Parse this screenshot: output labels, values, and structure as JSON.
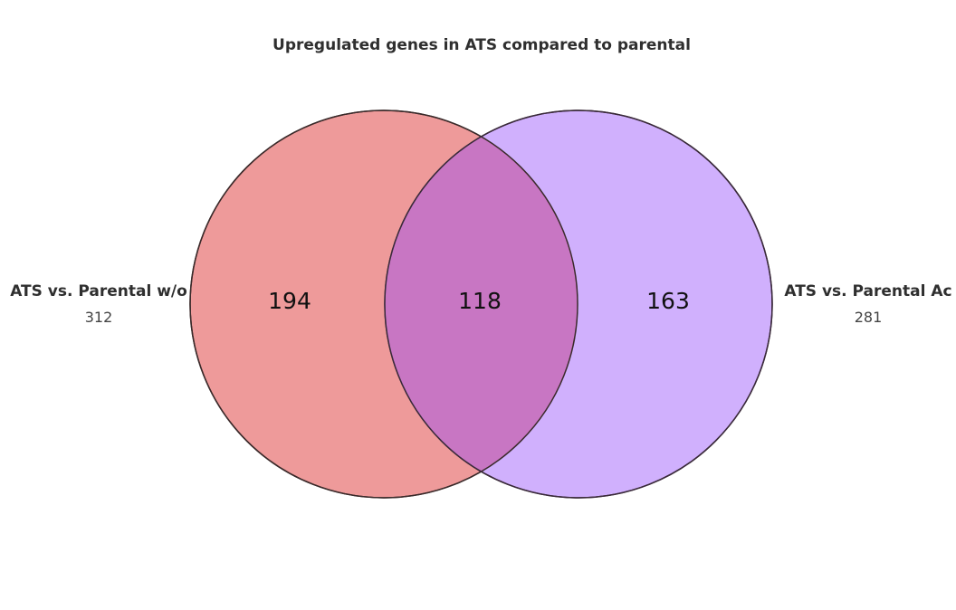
{
  "title": "Upregulated genes in ATS compared to parental",
  "sets": [
    {
      "name": "ATS vs. Parental w/o",
      "size": "312",
      "color": "#ee9a9a",
      "stroke": "#3a2a2a"
    },
    {
      "name": "ATS vs. Parental Ac",
      "size": "281",
      "color": "#d0b0fd",
      "stroke": "#3a2a3a"
    }
  ],
  "regions": {
    "left_only": "194",
    "intersection": "118",
    "right_only": "163"
  },
  "intersection_color": "#c876c3"
}
